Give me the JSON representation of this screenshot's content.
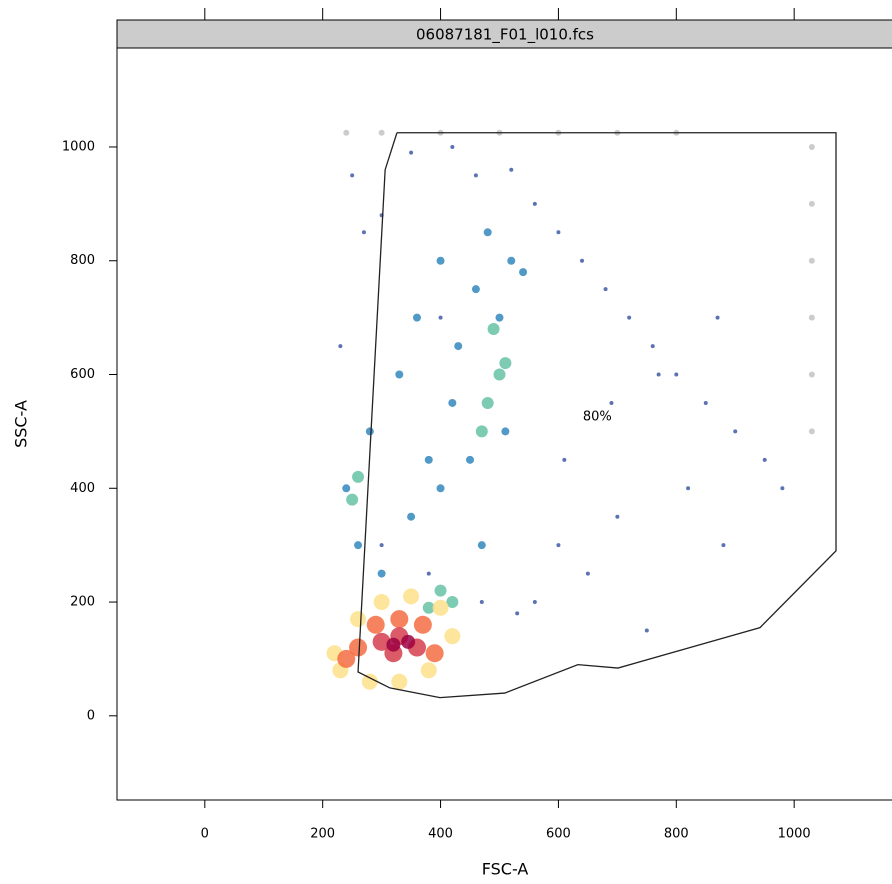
{
  "chart_data": {
    "type": "scatter",
    "title": "06087181_F01_l010.fcs",
    "xlabel": "FSC-A",
    "ylabel": "SSC-A",
    "xlim": [
      -149,
      1166
    ],
    "ylim": [
      -148,
      1174
    ],
    "xticks": [
      0,
      200,
      400,
      600,
      800,
      1000
    ],
    "yticks": [
      0,
      200,
      400,
      600,
      800,
      1000
    ],
    "series": [
      {
        "color": "#cccccc",
        "x": [
          240,
          300,
          400,
          500,
          600,
          700,
          800,
          1030,
          1030,
          1030,
          1030,
          1030,
          1030
        ],
        "values": [
          1025,
          1025,
          1025,
          1025,
          1025,
          1025,
          1025,
          1000,
          900,
          800,
          700,
          600,
          500
        ]
      },
      {
        "color": "#3f5aa6",
        "x": [
          250,
          300,
          350,
          400,
          420,
          460,
          520,
          560,
          600,
          640,
          680,
          720,
          760,
          800,
          850,
          900,
          950,
          600,
          700,
          820,
          560,
          650,
          750,
          880,
          980,
          300,
          380,
          470,
          530,
          610,
          690,
          770,
          870,
          230,
          270
        ],
        "values": [
          950,
          880,
          990,
          700,
          1000,
          950,
          960,
          900,
          850,
          800,
          750,
          700,
          650,
          600,
          550,
          500,
          450,
          300,
          350,
          400,
          200,
          250,
          150,
          300,
          400,
          300,
          250,
          200,
          180,
          450,
          550,
          600,
          700,
          650,
          850
        ]
      },
      {
        "color": "#3288bd",
        "x": [
          260,
          240,
          280,
          330,
          360,
          400,
          430,
          460,
          480,
          500,
          520,
          540,
          450,
          400,
          350,
          300,
          420,
          380,
          470,
          510
        ],
        "values": [
          300,
          400,
          500,
          600,
          700,
          800,
          650,
          750,
          850,
          700,
          800,
          780,
          450,
          400,
          350,
          250,
          550,
          450,
          300,
          500
        ]
      },
      {
        "color": "#66c2a5",
        "x": [
          480,
          500,
          490,
          470,
          510,
          260,
          250,
          400,
          420,
          380
        ],
        "values": [
          550,
          600,
          680,
          500,
          620,
          420,
          380,
          220,
          200,
          190
        ]
      },
      {
        "color": "#fee08b",
        "x": [
          230,
          260,
          300,
          350,
          400,
          420,
          220,
          280,
          330,
          380
        ],
        "values": [
          80,
          170,
          200,
          210,
          190,
          140,
          110,
          60,
          60,
          80
        ]
      },
      {
        "color": "#f46d43",
        "x": [
          260,
          290,
          330,
          370,
          390,
          240
        ],
        "values": [
          120,
          160,
          170,
          160,
          110,
          100
        ]
      },
      {
        "color": "#d53e4f",
        "x": [
          300,
          330,
          360,
          320
        ],
        "values": [
          130,
          140,
          120,
          110
        ]
      },
      {
        "color": "#9e0142",
        "x": [
          320,
          345
        ],
        "values": [
          125,
          130
        ]
      }
    ],
    "gate": {
      "color": "#222222",
      "x": [
        326,
        1071,
        1071,
        942,
        701,
        633,
        509,
        399,
        314,
        260,
        306,
        326
      ],
      "y": [
        1025,
        1025,
        290,
        155,
        84,
        90,
        40,
        32,
        49,
        77,
        960,
        1025
      ]
    },
    "annotation": {
      "text": "80%",
      "x": 666,
      "y": 525
    }
  }
}
